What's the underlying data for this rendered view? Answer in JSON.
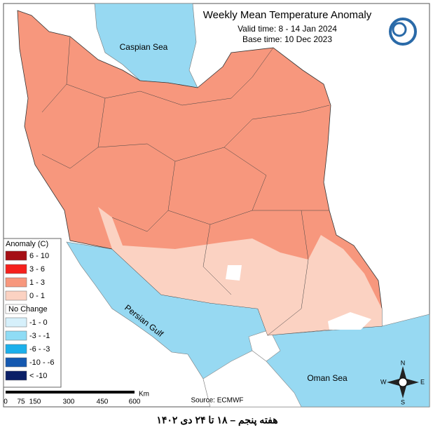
{
  "header": {
    "title": "Weekly Mean Temperature Anomaly",
    "valid_time": "Valid time: 8 - 14 Jan 2024",
    "base_time": "Base time: 10 Dec 2023"
  },
  "seas": [
    "Caspian Sea",
    "Persian Gulf",
    "Oman Sea"
  ],
  "legend": {
    "title": "Anomaly (C)",
    "items": [
      {
        "label": "6 - 10",
        "color": "#a50f15"
      },
      {
        "label": "3 - 6",
        "color": "#f5201c"
      },
      {
        "label": "1 - 3",
        "color": "#f7977d"
      },
      {
        "label": "0 - 1",
        "color": "#fbd2c2"
      },
      {
        "label": "No Change",
        "color": "#ffffff"
      },
      {
        "label": "-1 - 0",
        "color": "#d6f0fb"
      },
      {
        "label": "-3 - -1",
        "color": "#8fdcf5"
      },
      {
        "label": "-6 - -3",
        "color": "#1cb0eb"
      },
      {
        "label": "-10 - -6",
        "color": "#1559b0"
      },
      {
        "label": "< -10",
        "color": "#0a1f66"
      }
    ]
  },
  "scale": {
    "ticks": [
      "0",
      "75",
      "150",
      "300",
      "450",
      "600"
    ],
    "unit": "Km"
  },
  "compass": {
    "n": "N",
    "e": "E",
    "s": "S",
    "w": "W"
  },
  "source": "Source: ECMWF",
  "footer": "هفته پنجم – ۱۸ تا ۲۴ دی ۱۴۰۲"
}
